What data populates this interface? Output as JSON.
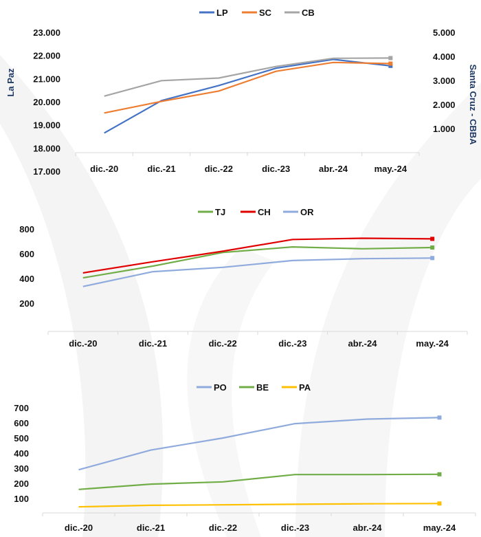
{
  "chart_data": [
    {
      "type": "line",
      "title": "",
      "categories": [
        "dic.-20",
        "dic.-21",
        "dic.-22",
        "dic.-23",
        "abr.-24",
        "may.-24"
      ],
      "legend_position": "top",
      "grid": false,
      "ylabel": "La Paz",
      "ylabel_right": "Santa Cruz - CBBA",
      "ylim": [
        17000,
        23000
      ],
      "ylim_right": [
        0,
        5000
      ],
      "yticks": [
        "17.000",
        "18.000",
        "19.000",
        "20.000",
        "21.000",
        "22.000",
        "23.000"
      ],
      "yticks_right": [
        "1.000",
        "2.000",
        "3.000",
        "4.000",
        "5.000"
      ],
      "series": [
        {
          "name": "LP",
          "axis": "left",
          "color": "#4472c4",
          "values": [
            18650,
            20050,
            20700,
            21450,
            21830,
            21550
          ]
        },
        {
          "name": "SC",
          "axis": "right",
          "color": "#ed7d31",
          "values": [
            1650,
            2130,
            2560,
            3380,
            3750,
            3700
          ]
        },
        {
          "name": "CB",
          "axis": "right",
          "color": "#a5a5a5",
          "values": [
            2350,
            2990,
            3100,
            3580,
            3920,
            3930
          ]
        }
      ]
    },
    {
      "type": "line",
      "title": "",
      "categories": [
        "dic.-20",
        "dic.-21",
        "dic.-22",
        "dic.-23",
        "abr.-24",
        "may.-24"
      ],
      "legend_position": "top",
      "grid": false,
      "ylim": [
        0,
        850
      ],
      "yticks": [
        "200",
        "400",
        "600",
        "800"
      ],
      "series": [
        {
          "name": "TJ",
          "color": "#70ad47",
          "values": [
            405,
            500,
            610,
            655,
            640,
            650
          ]
        },
        {
          "name": "CH",
          "color": "#e00000",
          "values": [
            445,
            535,
            620,
            715,
            725,
            720
          ]
        },
        {
          "name": "OR",
          "color": "#8faadc",
          "values": [
            335,
            455,
            490,
            545,
            560,
            565
          ]
        }
      ]
    },
    {
      "type": "line",
      "title": "",
      "categories": [
        "dic.-20",
        "dic.-21",
        "dic.-22",
        "dic.-23",
        "abr.-24",
        "may.-24"
      ],
      "legend_position": "top",
      "grid": false,
      "ylim": [
        0,
        700
      ],
      "yticks": [
        "100",
        "200",
        "300",
        "400",
        "500",
        "600",
        "700"
      ],
      "series": [
        {
          "name": "PO",
          "color": "#8faadc",
          "values": [
            290,
            420,
            500,
            595,
            625,
            635
          ]
        },
        {
          "name": "BE",
          "color": "#70ad47",
          "values": [
            160,
            195,
            210,
            258,
            258,
            260
          ]
        },
        {
          "name": "PA",
          "color": "#ffc000",
          "values": [
            45,
            55,
            58,
            62,
            65,
            67
          ]
        }
      ]
    }
  ]
}
